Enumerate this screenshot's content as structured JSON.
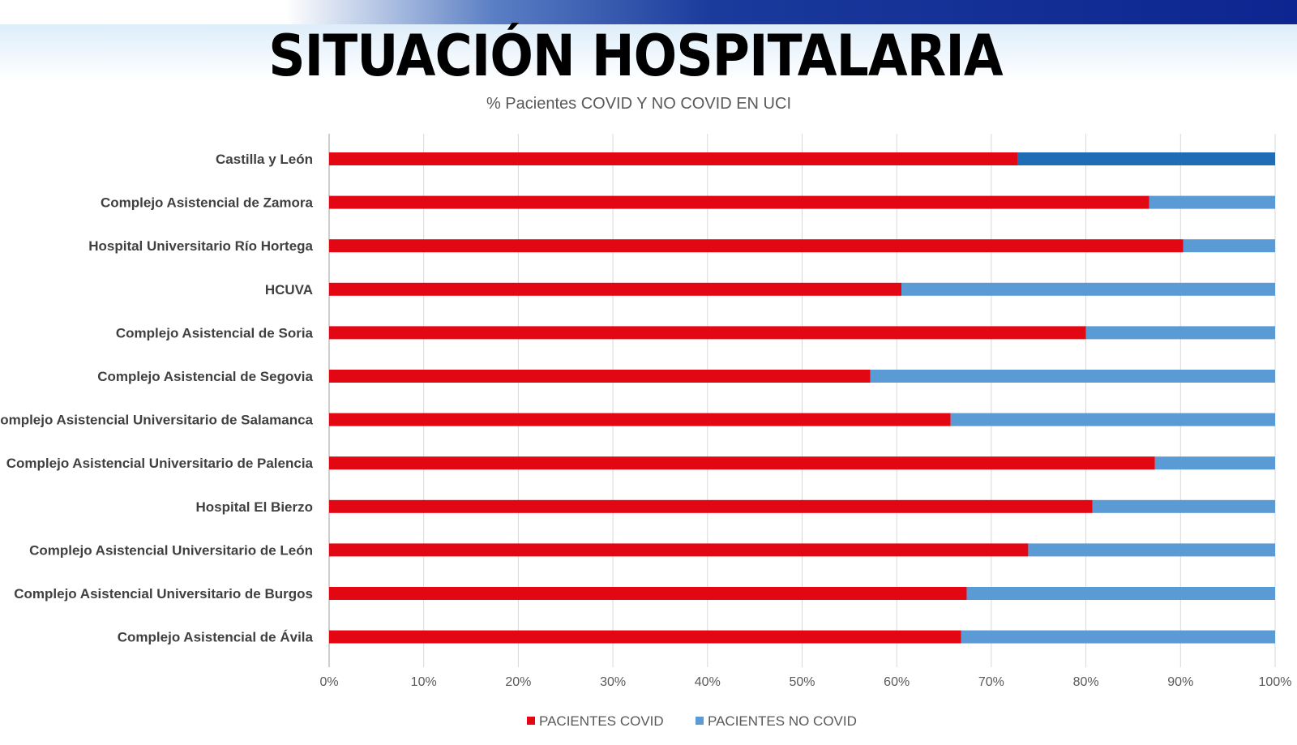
{
  "header": {
    "title": "SITUACIÓN HOSPITALARIA"
  },
  "chart_data": {
    "type": "bar",
    "orientation": "horizontal",
    "stacked": "100%",
    "title": "% Pacientes COVID Y NO COVID EN UCI",
    "categories": [
      "Castilla y León",
      "Complejo Asistencial de Zamora",
      "Hospital Universitario Río Hortega",
      "HCUVA",
      "Complejo Asistencial de Soria",
      "Complejo Asistencial de Segovia",
      "Complejo Asistencial Universitario de Salamanca",
      "Complejo Asistencial Universitario de Palencia",
      "Hospital El Bierzo",
      "Complejo Asistencial Universitario de León",
      "Complejo Asistencial Universitario de Burgos",
      "Complejo Asistencial de Ávila"
    ],
    "series": [
      {
        "name": "PACIENTES COVID",
        "color": "#e30613",
        "values": [
          72.8,
          86.7,
          90.3,
          60.5,
          80.0,
          57.2,
          65.7,
          87.3,
          80.7,
          73.9,
          67.4,
          66.8
        ]
      },
      {
        "name": "PACIENTES NO COVID",
        "color": "#5b9bd5",
        "highlight_color": "#1f6db5",
        "values": [
          27.2,
          13.3,
          9.7,
          39.5,
          20.0,
          42.8,
          34.3,
          12.7,
          19.3,
          26.1,
          32.6,
          33.2
        ]
      }
    ],
    "xlim": [
      0,
      100
    ],
    "xticks": [
      "0%",
      "10%",
      "20%",
      "30%",
      "40%",
      "50%",
      "60%",
      "70%",
      "80%",
      "90%",
      "100%"
    ],
    "grid": true,
    "legend": "bottom"
  }
}
